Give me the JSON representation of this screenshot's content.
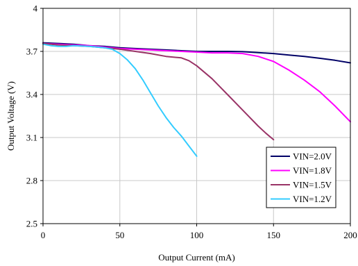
{
  "chart_data": {
    "type": "line",
    "xlabel": "Output Current (mA)",
    "ylabel": "Output Voltage (V)",
    "xlim": [
      0,
      200
    ],
    "ylim": [
      2.5,
      4
    ],
    "x_ticks": [
      0,
      50,
      100,
      150,
      200
    ],
    "y_ticks": [
      2.5,
      2.8,
      3.1,
      3.4,
      3.7,
      4
    ],
    "x_tick_labels": [
      "0",
      "50",
      "100",
      "150",
      "200"
    ],
    "y_tick_labels": [
      "2.5",
      "2.8",
      "3.1",
      "3.4",
      "3.7",
      "4"
    ],
    "grid": true,
    "legend_position": "bottom-right",
    "series": [
      {
        "name": "VIN=2.0V",
        "color": "#000066",
        "x": [
          0,
          10,
          20,
          30,
          40,
          50,
          60,
          70,
          80,
          90,
          100,
          110,
          120,
          130,
          140,
          150,
          160,
          170,
          180,
          190,
          200
        ],
        "y": [
          3.76,
          3.755,
          3.75,
          3.74,
          3.735,
          3.725,
          3.72,
          3.715,
          3.71,
          3.705,
          3.7,
          3.7,
          3.7,
          3.698,
          3.692,
          3.685,
          3.675,
          3.665,
          3.652,
          3.638,
          3.62
        ]
      },
      {
        "name": "VIN=1.8V",
        "color": "#ff00ff",
        "x": [
          0,
          10,
          20,
          30,
          40,
          50,
          60,
          70,
          80,
          90,
          100,
          110,
          120,
          130,
          140,
          150,
          160,
          170,
          180,
          190,
          200
        ],
        "y": [
          3.755,
          3.75,
          3.745,
          3.74,
          3.73,
          3.72,
          3.715,
          3.71,
          3.705,
          3.7,
          3.695,
          3.69,
          3.69,
          3.685,
          3.665,
          3.63,
          3.57,
          3.5,
          3.42,
          3.32,
          3.21
        ]
      },
      {
        "name": "VIN=1.5V",
        "color": "#993366",
        "x": [
          0,
          10,
          20,
          30,
          40,
          50,
          60,
          70,
          80,
          90,
          95,
          100,
          110,
          120,
          130,
          140,
          145,
          150
        ],
        "y": [
          3.755,
          3.745,
          3.74,
          3.735,
          3.725,
          3.715,
          3.7,
          3.685,
          3.665,
          3.655,
          3.635,
          3.6,
          3.51,
          3.4,
          3.29,
          3.18,
          3.13,
          3.085
        ]
      },
      {
        "name": "VIN=1.2V",
        "color": "#33ccff",
        "x": [
          0,
          5,
          10,
          15,
          20,
          30,
          40,
          45,
          50,
          55,
          60,
          65,
          70,
          75,
          80,
          85,
          90,
          95,
          100
        ],
        "y": [
          3.75,
          3.74,
          3.735,
          3.735,
          3.74,
          3.735,
          3.725,
          3.715,
          3.685,
          3.64,
          3.58,
          3.5,
          3.41,
          3.32,
          3.24,
          3.17,
          3.11,
          3.04,
          2.97
        ]
      }
    ]
  }
}
